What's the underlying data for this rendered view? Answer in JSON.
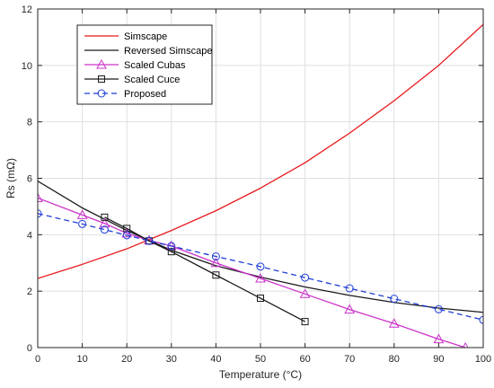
{
  "chart_data": {
    "type": "line",
    "xlabel": "Temperature (°C)",
    "ylabel": "Rs (mΩ)",
    "xlim": [
      0,
      100
    ],
    "ylim": [
      0,
      12
    ],
    "xticks": [
      "0",
      "10",
      "20",
      "30",
      "40",
      "50",
      "60",
      "70",
      "80",
      "90",
      "100"
    ],
    "yticks": [
      "0",
      "2",
      "4",
      "6",
      "8",
      "10",
      "12"
    ],
    "grid": true,
    "legend_position": "top-left",
    "series": [
      {
        "name": "Simscape",
        "color": "#e8191d",
        "line_style": "solid",
        "marker": "none",
        "x": [
          0,
          10,
          20,
          30,
          40,
          50,
          60,
          70,
          80,
          90,
          100
        ],
        "y": [
          2.45,
          2.95,
          3.5,
          4.15,
          4.85,
          5.65,
          6.55,
          7.6,
          8.75,
          10.0,
          11.45
        ]
      },
      {
        "name": "Reversed Simscape",
        "color": "#1a1a1a",
        "line_style": "solid",
        "marker": "none",
        "x": [
          0,
          10,
          20,
          30,
          40,
          50,
          60,
          70,
          80,
          90,
          100
        ],
        "y": [
          5.9,
          4.95,
          4.15,
          3.45,
          2.9,
          2.5,
          2.15,
          1.85,
          1.6,
          1.4,
          1.25
        ]
      },
      {
        "name": "Scaled Cubas",
        "color": "#cc33cc",
        "line_style": "solid",
        "marker": "triangle",
        "x": [
          0,
          10,
          15,
          20,
          25,
          30,
          40,
          50,
          60,
          70,
          80,
          90,
          96
        ],
        "y": [
          5.3,
          4.7,
          4.4,
          4.05,
          3.8,
          3.6,
          3.0,
          2.45,
          1.9,
          1.35,
          0.85,
          0.3,
          0.0
        ]
      },
      {
        "name": "Scaled Cuce",
        "color": "#1a1a1a",
        "line_style": "solid",
        "marker": "square",
        "x": [
          15,
          20,
          25,
          30,
          40,
          50,
          60
        ],
        "y": [
          4.62,
          4.22,
          3.78,
          3.4,
          2.57,
          1.75,
          0.92
        ]
      },
      {
        "name": "Proposed",
        "color": "#1f3fd6",
        "line_style": "dashed",
        "marker": "circle",
        "x": [
          0,
          10,
          15,
          20,
          25,
          30,
          40,
          50,
          60,
          70,
          80,
          90,
          100
        ],
        "y": [
          4.75,
          4.38,
          4.18,
          3.98,
          3.78,
          3.6,
          3.23,
          2.87,
          2.48,
          2.1,
          1.73,
          1.36,
          0.98
        ]
      }
    ]
  }
}
